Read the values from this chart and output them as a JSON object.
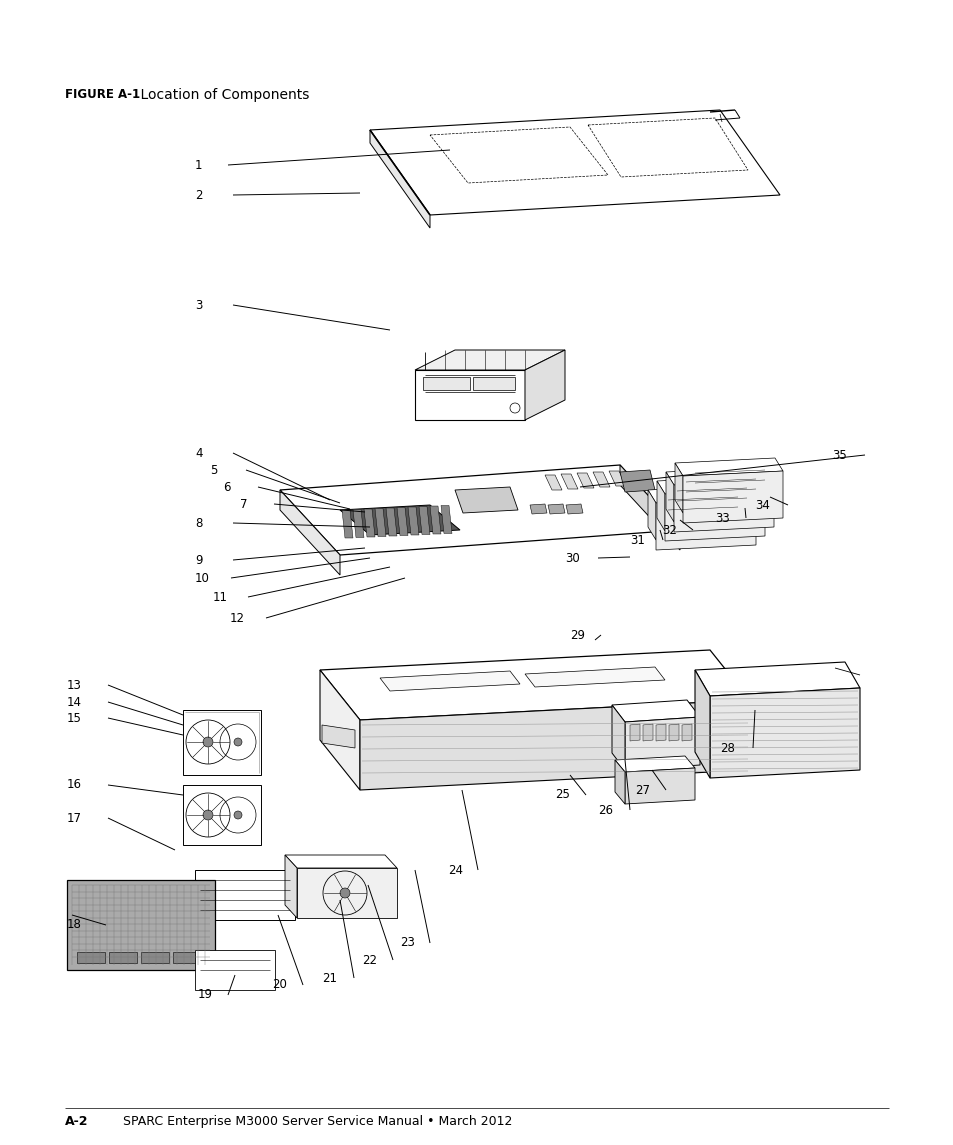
{
  "page_background": "#ffffff",
  "figure_label": "FIGURE A-1",
  "figure_title": "    Location of Components",
  "footer_left": "A-2",
  "footer_right": "SPARC Enterprise M3000 Server Service Manual • March 2012",
  "figure_label_fontsize": 8.5,
  "figure_title_fontsize": 10,
  "footer_fontsize": 9,
  "line_color": "#000000",
  "label_fontsize": 8.5
}
